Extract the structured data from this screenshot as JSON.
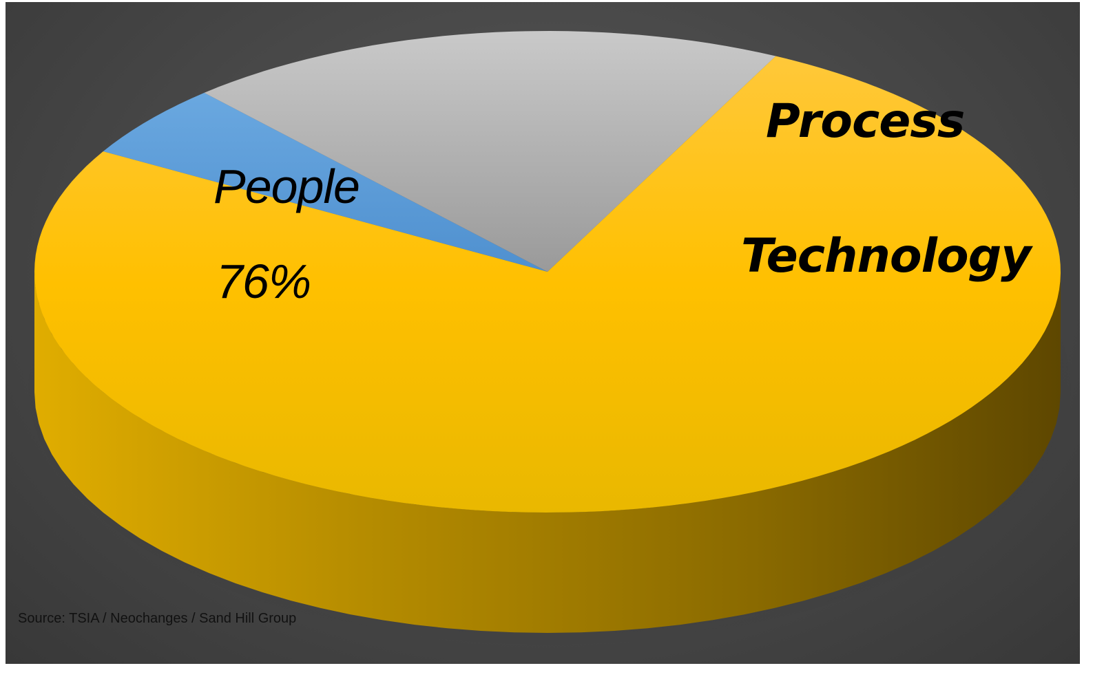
{
  "chart_data": {
    "type": "pie",
    "style": "3d",
    "categories": [
      "People",
      "Process",
      "Technology"
    ],
    "values": [
      76,
      5,
      19
    ],
    "colors": [
      "#ffc000",
      "#5b9bd5",
      "#a5a5a5"
    ],
    "data_labels": {
      "people_name": "People",
      "people_value": "76%",
      "process_name": "Process",
      "technology_name": "Technology"
    },
    "legend": "none"
  },
  "source_note": "Source:  TSIA / Neochanges / Sand Hill Group"
}
